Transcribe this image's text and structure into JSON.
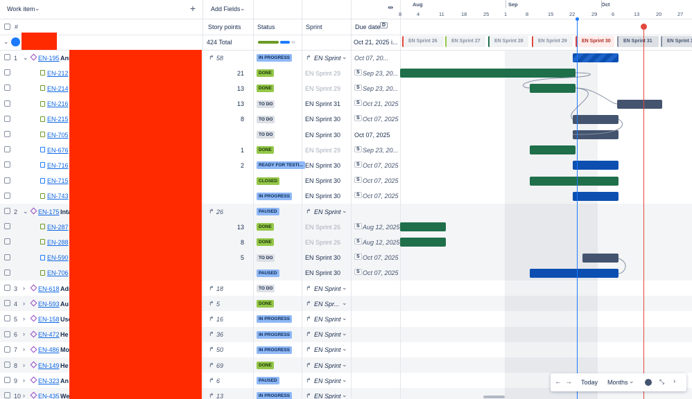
{
  "header": {
    "work_item": "Work item",
    "add_fields": "Add Fields",
    "number": "#",
    "story_points": "Story points",
    "status": "Status",
    "sprint": "Sprint",
    "due_date": "Due date",
    "due_badge": "D"
  },
  "timeline": {
    "months": [
      "Aug",
      "Sep",
      "Oct"
    ],
    "days": [
      "8",
      "4",
      "11",
      "18",
      "25",
      "1",
      "8",
      "15",
      "22",
      "29",
      "6",
      "13",
      "20",
      "27"
    ]
  },
  "summary": {
    "total": "424 Total",
    "due": "Oct 21, 2025 i...",
    "sprints": [
      "EN Sprint 26",
      "EN Sprint 27",
      "EN Sprint 28",
      "EN Sprint 29",
      "EN Sprint 30",
      "EN Sprint 31",
      "EN Sprint 3"
    ]
  },
  "rows": [
    {
      "num": "1",
      "key": "EN-195",
      "title": "Ani",
      "points": 58,
      "status": "IN PROGRESS",
      "sprint": "EN Sprint",
      "due": "Oct 07, 20..."
    },
    {
      "key": "EN-212",
      "points": 21,
      "status": "DONE",
      "sprint": "EN Sprint 29",
      "badge": "S",
      "due": "Sep 23, 20..."
    },
    {
      "key": "EN-214",
      "points": 13,
      "status": "DONE",
      "sprint": "EN Sprint 29",
      "badge": "S",
      "due": "Sep 23, 20..."
    },
    {
      "key": "EN-216",
      "points": 13,
      "status": "TO DO",
      "sprint": "EN Sprint 31",
      "badge": "S",
      "due": "Oct 21, 2025"
    },
    {
      "key": "EN-215",
      "points": 8,
      "status": "TO DO",
      "sprint": "EN Sprint 30",
      "badge": "S",
      "due": "Oct 07, 2025"
    },
    {
      "key": "EN-705",
      "status": "TO DO",
      "sprint": "EN Sprint 30",
      "due": "Oct 07, 2025"
    },
    {
      "key": "EN-676",
      "points": 1,
      "status": "DONE",
      "sprint": "EN Sprint 29",
      "badge": "S",
      "due": "Sep 23, 20..."
    },
    {
      "key": "EN-716",
      "points": 2,
      "status": "READY FOR TESTI...",
      "sprint": "EN Sprint 30",
      "badge": "S",
      "due": "Oct 07, 2025"
    },
    {
      "key": "EN-715",
      "status": "CLOSED",
      "sprint": "EN Sprint 30",
      "badge": "S",
      "due": "Oct 07, 2025"
    },
    {
      "key": "EN-743",
      "status": "IN PROGRESS",
      "sprint": "EN Sprint 30",
      "badge": "S",
      "due": "Oct 07, 2025"
    },
    {
      "num": "2",
      "key": "EN-175",
      "title": "Inta",
      "points": 26,
      "status": "PAUSED",
      "sprint": "EN Sprint"
    },
    {
      "key": "EN-287",
      "points": 13,
      "status": "DONE",
      "sprint": "EN Sprint 26",
      "badge": "S",
      "due": "Aug 12, 2025"
    },
    {
      "key": "EN-288",
      "points": 8,
      "status": "DONE",
      "sprint": "EN Sprint 26",
      "badge": "S",
      "due": "Aug 12, 2025"
    },
    {
      "key": "EN-590",
      "points": 5,
      "status": "TO DO",
      "sprint": "EN Sprint 30",
      "badge": "S",
      "due": "Oct 07, 2025"
    },
    {
      "key": "EN-706",
      "status": "PAUSED",
      "sprint": "EN Sprint 30",
      "badge": "S",
      "due": "Oct 07, 2025"
    },
    {
      "num": "3",
      "key": "EN-618",
      "title": "Adr",
      "points": 18,
      "status": "TO DO",
      "sprint": "EN Sprint"
    },
    {
      "num": "4",
      "key": "EN-593",
      "title": "Au",
      "points": 5,
      "status": "DONE",
      "sprint": "EN Spr..."
    },
    {
      "num": "5",
      "key": "EN-158",
      "title": "Use",
      "points": 16,
      "status": "IN PROGRESS",
      "sprint": "EN Sprint"
    },
    {
      "num": "6",
      "key": "EN-472",
      "title": "He",
      "points": 36,
      "status": "IN PROGRESS",
      "sprint": "EN Sprint"
    },
    {
      "num": "7",
      "key": "EN-486",
      "title": "Mo",
      "points": 50,
      "status": "IN PROGRESS",
      "sprint": "EN Sprint"
    },
    {
      "num": "8",
      "key": "EN-149",
      "title": "He",
      "points": 69,
      "status": "DONE",
      "sprint": "EN Sprint"
    },
    {
      "num": "9",
      "key": "EN-323",
      "title": "An",
      "points": 6,
      "status": "PAUSED",
      "sprint": "EN Sprint"
    },
    {
      "num": "10",
      "key": "EN-435",
      "title": "We",
      "points": 13,
      "status": "IN PROGRESS",
      "sprint": "EN Sprint"
    }
  ],
  "toolbar": {
    "today": "Today",
    "months": "Months"
  }
}
